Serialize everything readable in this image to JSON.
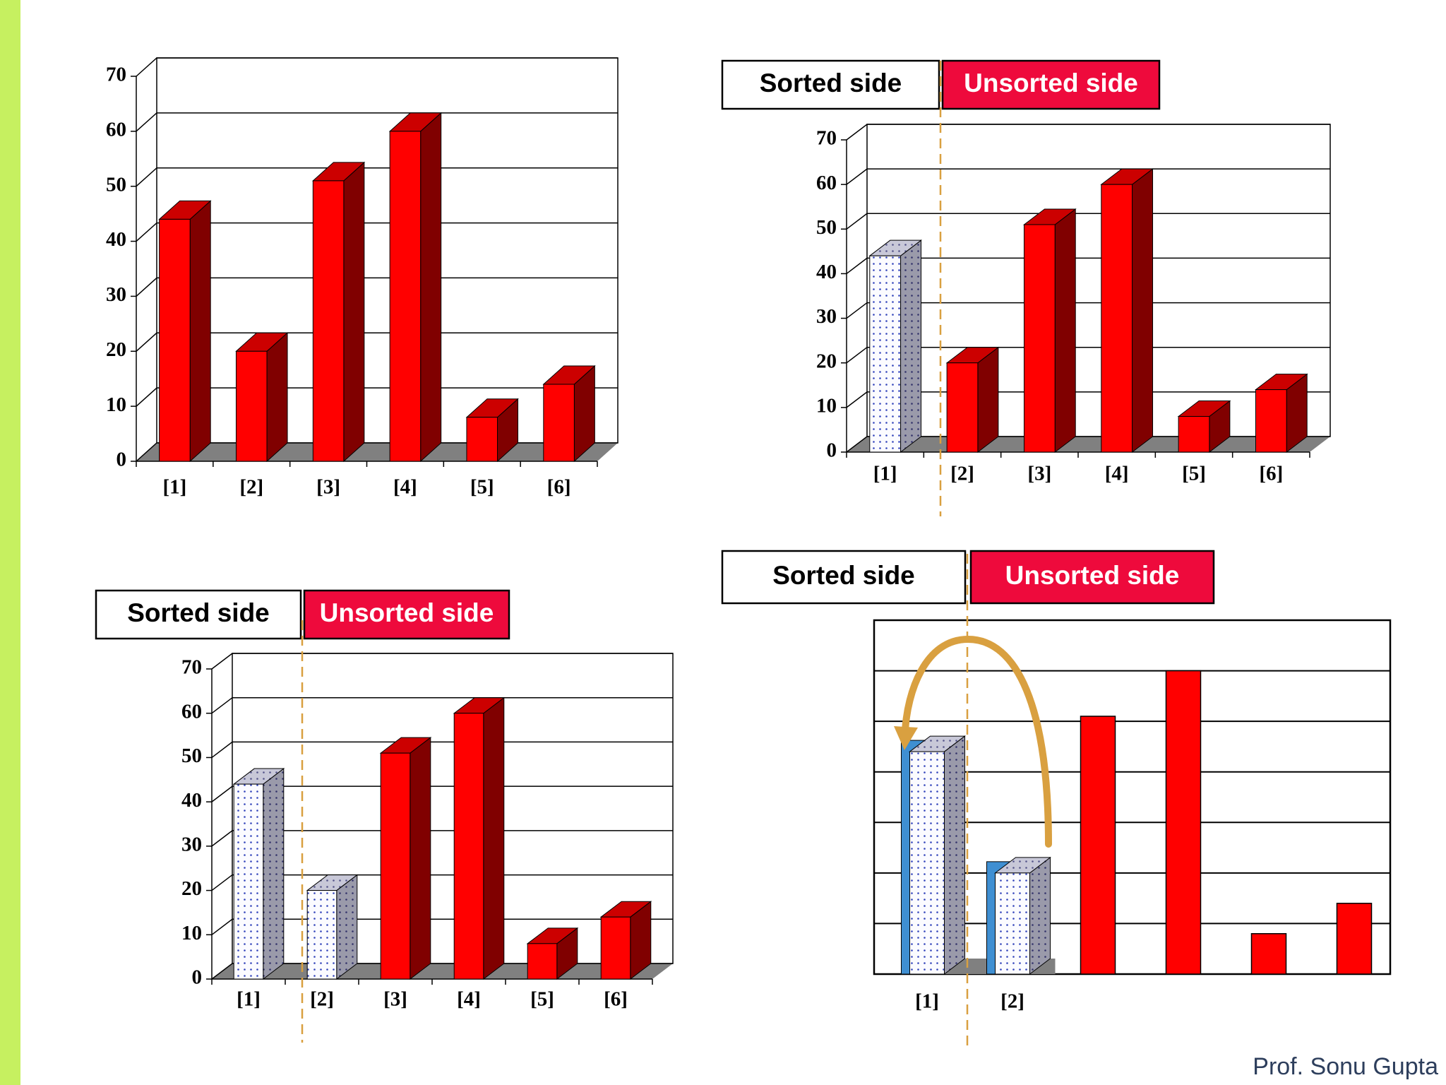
{
  "chart_data": [
    {
      "type": "bar",
      "categories": [
        "[1]",
        "[2]",
        "[3]",
        "[4]",
        "[5]",
        "[6]"
      ],
      "values": [
        44,
        20,
        51,
        60,
        8,
        14
      ],
      "bar_colors": [
        "#ff0000",
        "#ff0000",
        "#ff0000",
        "#ff0000",
        "#ff0000",
        "#ff0000"
      ],
      "ylim": [
        0,
        70
      ],
      "yticks": [
        0,
        10,
        20,
        30,
        40,
        50,
        60,
        70
      ],
      "grid": true,
      "tick_labels": true
    },
    {
      "type": "bar",
      "categories": [
        "[1]",
        "[2]",
        "[3]",
        "[4]",
        "[5]",
        "[6]"
      ],
      "values": [
        44,
        20,
        51,
        60,
        8,
        14
      ],
      "bar_colors": [
        "dotted",
        "#ff0000",
        "#ff0000",
        "#ff0000",
        "#ff0000",
        "#ff0000"
      ],
      "ylim": [
        0,
        70
      ],
      "yticks": [
        0,
        10,
        20,
        30,
        40,
        50,
        60,
        70
      ],
      "grid": true,
      "tick_labels": true,
      "sorted_label": "Sorted side",
      "unsorted_label": "Unsorted side"
    },
    {
      "type": "bar",
      "categories": [
        "[1]",
        "[2]",
        "[3]",
        "[4]",
        "[5]",
        "[6]"
      ],
      "values": [
        44,
        20,
        51,
        60,
        8,
        14
      ],
      "bar_colors": [
        "dotted",
        "dotted",
        "#ff0000",
        "#ff0000",
        "#ff0000",
        "#ff0000"
      ],
      "ylim": [
        0,
        70
      ],
      "yticks": [
        0,
        10,
        20,
        30,
        40,
        50,
        60,
        70
      ],
      "grid": true,
      "tick_labels": true,
      "sorted_label": "Sorted side",
      "unsorted_label": "Unsorted side"
    },
    {
      "type": "bar",
      "categories": [
        "[1]",
        "[2]",
        null,
        null,
        null,
        null
      ],
      "values": [
        44,
        20,
        51,
        60,
        8,
        14
      ],
      "bar_colors": [
        "dotted",
        "dotted",
        "#ff0000",
        "#ff0000",
        "#ff0000",
        "#ff0000"
      ],
      "moved_color": "#3f8fd2",
      "ylim": [
        0,
        70
      ],
      "yticks": [
        0,
        10,
        20,
        30,
        40,
        50,
        60,
        70
      ],
      "grid": true,
      "tick_labels": false,
      "sorted_label": "Sorted side",
      "unsorted_label": "Unsorted side"
    }
  ],
  "footer": "Prof. Sonu Gupta"
}
